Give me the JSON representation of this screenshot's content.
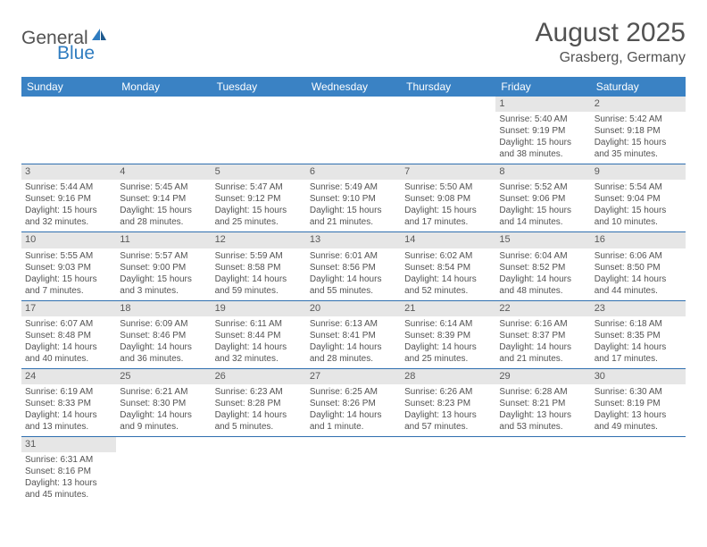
{
  "logo": {
    "text1": "General",
    "text2": "Blue"
  },
  "title": "August 2025",
  "location": "Grasberg, Germany",
  "colors": {
    "header_bg": "#3a82c4",
    "header_fg": "#ffffff",
    "daynum_bg": "#e6e6e6",
    "text": "#525252",
    "rule": "#2f6faf"
  },
  "weekdays": [
    "Sunday",
    "Monday",
    "Tuesday",
    "Wednesday",
    "Thursday",
    "Friday",
    "Saturday"
  ],
  "weeks": [
    [
      null,
      null,
      null,
      null,
      null,
      {
        "n": "1",
        "sr": "Sunrise: 5:40 AM",
        "ss": "Sunset: 9:19 PM",
        "d1": "Daylight: 15 hours",
        "d2": "and 38 minutes."
      },
      {
        "n": "2",
        "sr": "Sunrise: 5:42 AM",
        "ss": "Sunset: 9:18 PM",
        "d1": "Daylight: 15 hours",
        "d2": "and 35 minutes."
      }
    ],
    [
      {
        "n": "3",
        "sr": "Sunrise: 5:44 AM",
        "ss": "Sunset: 9:16 PM",
        "d1": "Daylight: 15 hours",
        "d2": "and 32 minutes."
      },
      {
        "n": "4",
        "sr": "Sunrise: 5:45 AM",
        "ss": "Sunset: 9:14 PM",
        "d1": "Daylight: 15 hours",
        "d2": "and 28 minutes."
      },
      {
        "n": "5",
        "sr": "Sunrise: 5:47 AM",
        "ss": "Sunset: 9:12 PM",
        "d1": "Daylight: 15 hours",
        "d2": "and 25 minutes."
      },
      {
        "n": "6",
        "sr": "Sunrise: 5:49 AM",
        "ss": "Sunset: 9:10 PM",
        "d1": "Daylight: 15 hours",
        "d2": "and 21 minutes."
      },
      {
        "n": "7",
        "sr": "Sunrise: 5:50 AM",
        "ss": "Sunset: 9:08 PM",
        "d1": "Daylight: 15 hours",
        "d2": "and 17 minutes."
      },
      {
        "n": "8",
        "sr": "Sunrise: 5:52 AM",
        "ss": "Sunset: 9:06 PM",
        "d1": "Daylight: 15 hours",
        "d2": "and 14 minutes."
      },
      {
        "n": "9",
        "sr": "Sunrise: 5:54 AM",
        "ss": "Sunset: 9:04 PM",
        "d1": "Daylight: 15 hours",
        "d2": "and 10 minutes."
      }
    ],
    [
      {
        "n": "10",
        "sr": "Sunrise: 5:55 AM",
        "ss": "Sunset: 9:03 PM",
        "d1": "Daylight: 15 hours",
        "d2": "and 7 minutes."
      },
      {
        "n": "11",
        "sr": "Sunrise: 5:57 AM",
        "ss": "Sunset: 9:00 PM",
        "d1": "Daylight: 15 hours",
        "d2": "and 3 minutes."
      },
      {
        "n": "12",
        "sr": "Sunrise: 5:59 AM",
        "ss": "Sunset: 8:58 PM",
        "d1": "Daylight: 14 hours",
        "d2": "and 59 minutes."
      },
      {
        "n": "13",
        "sr": "Sunrise: 6:01 AM",
        "ss": "Sunset: 8:56 PM",
        "d1": "Daylight: 14 hours",
        "d2": "and 55 minutes."
      },
      {
        "n": "14",
        "sr": "Sunrise: 6:02 AM",
        "ss": "Sunset: 8:54 PM",
        "d1": "Daylight: 14 hours",
        "d2": "and 52 minutes."
      },
      {
        "n": "15",
        "sr": "Sunrise: 6:04 AM",
        "ss": "Sunset: 8:52 PM",
        "d1": "Daylight: 14 hours",
        "d2": "and 48 minutes."
      },
      {
        "n": "16",
        "sr": "Sunrise: 6:06 AM",
        "ss": "Sunset: 8:50 PM",
        "d1": "Daylight: 14 hours",
        "d2": "and 44 minutes."
      }
    ],
    [
      {
        "n": "17",
        "sr": "Sunrise: 6:07 AM",
        "ss": "Sunset: 8:48 PM",
        "d1": "Daylight: 14 hours",
        "d2": "and 40 minutes."
      },
      {
        "n": "18",
        "sr": "Sunrise: 6:09 AM",
        "ss": "Sunset: 8:46 PM",
        "d1": "Daylight: 14 hours",
        "d2": "and 36 minutes."
      },
      {
        "n": "19",
        "sr": "Sunrise: 6:11 AM",
        "ss": "Sunset: 8:44 PM",
        "d1": "Daylight: 14 hours",
        "d2": "and 32 minutes."
      },
      {
        "n": "20",
        "sr": "Sunrise: 6:13 AM",
        "ss": "Sunset: 8:41 PM",
        "d1": "Daylight: 14 hours",
        "d2": "and 28 minutes."
      },
      {
        "n": "21",
        "sr": "Sunrise: 6:14 AM",
        "ss": "Sunset: 8:39 PM",
        "d1": "Daylight: 14 hours",
        "d2": "and 25 minutes."
      },
      {
        "n": "22",
        "sr": "Sunrise: 6:16 AM",
        "ss": "Sunset: 8:37 PM",
        "d1": "Daylight: 14 hours",
        "d2": "and 21 minutes."
      },
      {
        "n": "23",
        "sr": "Sunrise: 6:18 AM",
        "ss": "Sunset: 8:35 PM",
        "d1": "Daylight: 14 hours",
        "d2": "and 17 minutes."
      }
    ],
    [
      {
        "n": "24",
        "sr": "Sunrise: 6:19 AM",
        "ss": "Sunset: 8:33 PM",
        "d1": "Daylight: 14 hours",
        "d2": "and 13 minutes."
      },
      {
        "n": "25",
        "sr": "Sunrise: 6:21 AM",
        "ss": "Sunset: 8:30 PM",
        "d1": "Daylight: 14 hours",
        "d2": "and 9 minutes."
      },
      {
        "n": "26",
        "sr": "Sunrise: 6:23 AM",
        "ss": "Sunset: 8:28 PM",
        "d1": "Daylight: 14 hours",
        "d2": "and 5 minutes."
      },
      {
        "n": "27",
        "sr": "Sunrise: 6:25 AM",
        "ss": "Sunset: 8:26 PM",
        "d1": "Daylight: 14 hours",
        "d2": "and 1 minute."
      },
      {
        "n": "28",
        "sr": "Sunrise: 6:26 AM",
        "ss": "Sunset: 8:23 PM",
        "d1": "Daylight: 13 hours",
        "d2": "and 57 minutes."
      },
      {
        "n": "29",
        "sr": "Sunrise: 6:28 AM",
        "ss": "Sunset: 8:21 PM",
        "d1": "Daylight: 13 hours",
        "d2": "and 53 minutes."
      },
      {
        "n": "30",
        "sr": "Sunrise: 6:30 AM",
        "ss": "Sunset: 8:19 PM",
        "d1": "Daylight: 13 hours",
        "d2": "and 49 minutes."
      }
    ],
    [
      {
        "n": "31",
        "sr": "Sunrise: 6:31 AM",
        "ss": "Sunset: 8:16 PM",
        "d1": "Daylight: 13 hours",
        "d2": "and 45 minutes."
      },
      null,
      null,
      null,
      null,
      null,
      null
    ]
  ]
}
